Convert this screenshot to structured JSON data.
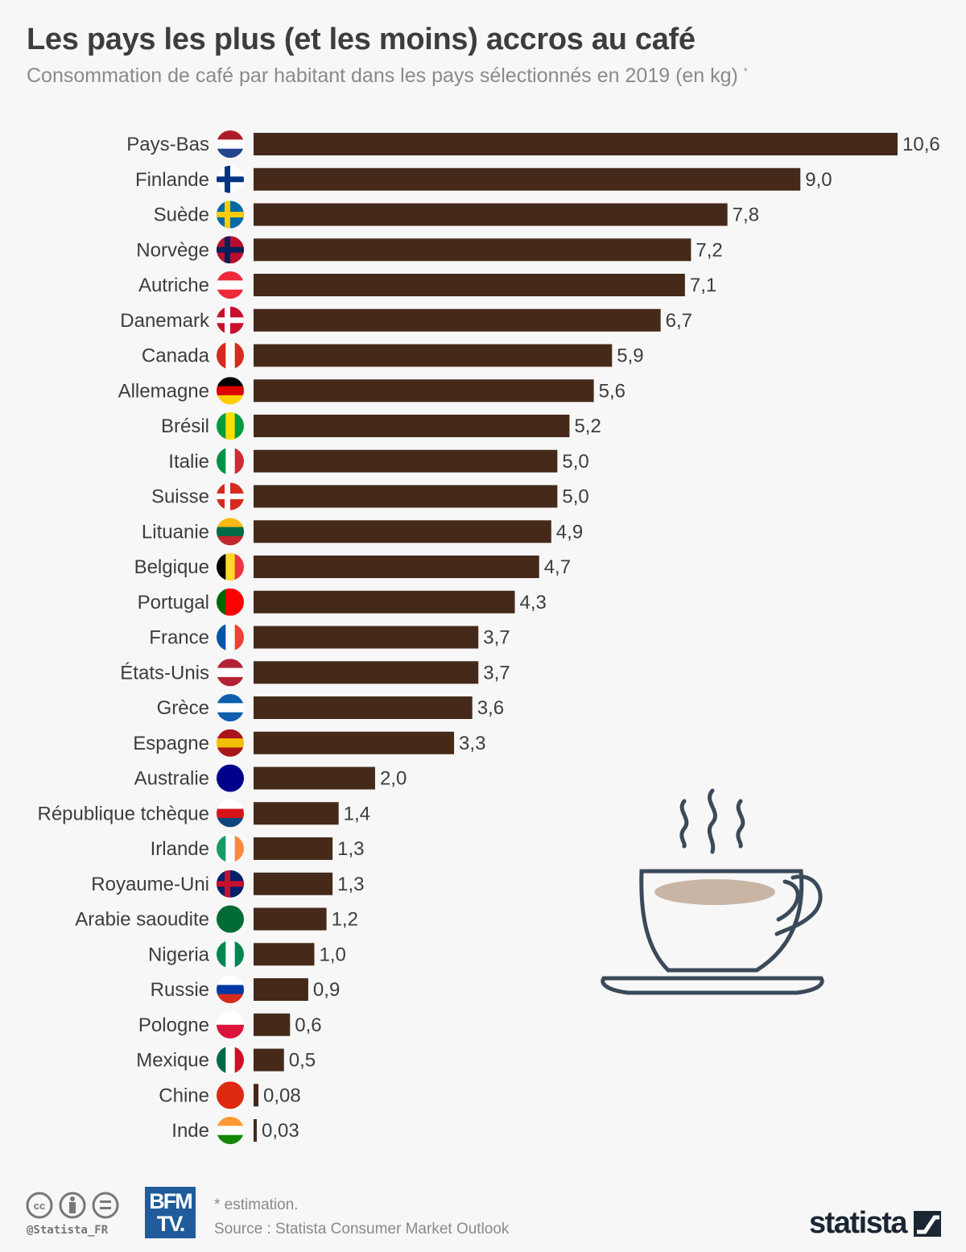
{
  "title": "Les pays les plus (et les moins) accros au café",
  "subtitle": "Consommation de café par habitant dans les pays sélectionnés en 2019 (en kg)",
  "subtitle_mark": "*",
  "colors": {
    "bar": "#452a1a",
    "text": "#3d3d3d",
    "cup": "#3b4a5a",
    "coffee": "#c8b5a6"
  },
  "chart_data": {
    "type": "bar",
    "orientation": "horizontal",
    "title": "Les pays les plus (et les moins) accros au café",
    "xlabel": "",
    "ylabel": "",
    "xlim": [
      0,
      10.6
    ],
    "grid": false,
    "categories": [
      "Pays-Bas",
      "Finlande",
      "Suède",
      "Norvège",
      "Autriche",
      "Danemark",
      "Canada",
      "Allemagne",
      "Brésil",
      "Italie",
      "Suisse",
      "Lituanie",
      "Belgique",
      "Portugal",
      "France",
      "États-Unis",
      "Grèce",
      "Espagne",
      "Australie",
      "République tchèque",
      "Irlande",
      "Royaume-Uni",
      "Arabie saoudite",
      "Nigeria",
      "Russie",
      "Pologne",
      "Mexique",
      "Chine",
      "Inde"
    ],
    "values": [
      10.6,
      9.0,
      7.8,
      7.2,
      7.1,
      6.7,
      5.9,
      5.6,
      5.2,
      5.0,
      5.0,
      4.9,
      4.7,
      4.3,
      3.7,
      3.7,
      3.6,
      3.3,
      2.0,
      1.4,
      1.3,
      1.3,
      1.2,
      1.0,
      0.9,
      0.6,
      0.5,
      0.08,
      0.03
    ],
    "value_labels": [
      "10,6",
      "9,0",
      "7,8",
      "7,2",
      "7,1",
      "6,7",
      "5,9",
      "5,6",
      "5,2",
      "5,0",
      "5,0",
      "4,9",
      "4,7",
      "4,3",
      "3,7",
      "3,7",
      "3,6",
      "3,3",
      "2,0",
      "1,4",
      "1,3",
      "1,3",
      "1,2",
      "1,0",
      "0,9",
      "0,6",
      "0,5",
      "0,08",
      "0,03"
    ]
  },
  "flags": [
    {
      "dir": "h",
      "colors": [
        "#ae1c28",
        "#ffffff",
        "#21468b"
      ]
    },
    {
      "dir": "cross",
      "colors": [
        "#ffffff",
        "#003580"
      ]
    },
    {
      "dir": "cross",
      "colors": [
        "#006aa7",
        "#fecc00"
      ]
    },
    {
      "dir": "cross",
      "colors": [
        "#ba0c2f",
        "#00205b"
      ]
    },
    {
      "dir": "h",
      "colors": [
        "#ed2939",
        "#ffffff",
        "#ed2939"
      ]
    },
    {
      "dir": "cross",
      "colors": [
        "#c8102e",
        "#ffffff"
      ]
    },
    {
      "dir": "v",
      "colors": [
        "#d52b1e",
        "#ffffff",
        "#d52b1e"
      ]
    },
    {
      "dir": "h",
      "colors": [
        "#000000",
        "#dd0000",
        "#ffce00"
      ]
    },
    {
      "dir": "v",
      "colors": [
        "#009c3b",
        "#ffdf00",
        "#009c3b"
      ]
    },
    {
      "dir": "v",
      "colors": [
        "#009246",
        "#ffffff",
        "#ce2b37"
      ]
    },
    {
      "dir": "cross",
      "colors": [
        "#d52b1e",
        "#ffffff"
      ]
    },
    {
      "dir": "h",
      "colors": [
        "#fdb913",
        "#006a44",
        "#c1272d"
      ]
    },
    {
      "dir": "v",
      "colors": [
        "#000000",
        "#fdda24",
        "#ef3340"
      ]
    },
    {
      "dir": "v",
      "colors": [
        "#006600",
        "#ff0000",
        "#ff0000"
      ]
    },
    {
      "dir": "v",
      "colors": [
        "#0055a4",
        "#ffffff",
        "#ef4135"
      ]
    },
    {
      "dir": "h",
      "colors": [
        "#b22234",
        "#ffffff",
        "#b22234"
      ]
    },
    {
      "dir": "h",
      "colors": [
        "#0d5eaf",
        "#ffffff",
        "#0d5eaf"
      ]
    },
    {
      "dir": "h",
      "colors": [
        "#aa151b",
        "#f1bf00",
        "#aa151b"
      ]
    },
    {
      "dir": "h",
      "colors": [
        "#00008b",
        "#00008b",
        "#00008b"
      ]
    },
    {
      "dir": "h",
      "colors": [
        "#ffffff",
        "#d7141a",
        "#11457e"
      ]
    },
    {
      "dir": "v",
      "colors": [
        "#169b62",
        "#ffffff",
        "#ff883e"
      ]
    },
    {
      "dir": "cross",
      "colors": [
        "#012169",
        "#c8102e"
      ]
    },
    {
      "dir": "h",
      "colors": [
        "#006c35",
        "#006c35",
        "#006c35"
      ]
    },
    {
      "dir": "v",
      "colors": [
        "#008751",
        "#ffffff",
        "#008751"
      ]
    },
    {
      "dir": "h",
      "colors": [
        "#ffffff",
        "#0039a6",
        "#d52b1e"
      ]
    },
    {
      "dir": "h",
      "colors": [
        "#ffffff",
        "#dc143c"
      ]
    },
    {
      "dir": "v",
      "colors": [
        "#006847",
        "#ffffff",
        "#ce1126"
      ]
    },
    {
      "dir": "h",
      "colors": [
        "#de2910",
        "#de2910",
        "#de2910"
      ]
    },
    {
      "dir": "h",
      "colors": [
        "#ff9933",
        "#ffffff",
        "#138808"
      ]
    }
  ],
  "footer": {
    "handle": "@Statista_FR",
    "partner_logo": "BFM TV.",
    "note": "* estimation.",
    "source": "Source : Statista Consumer Market Outlook",
    "brand": "statista"
  }
}
